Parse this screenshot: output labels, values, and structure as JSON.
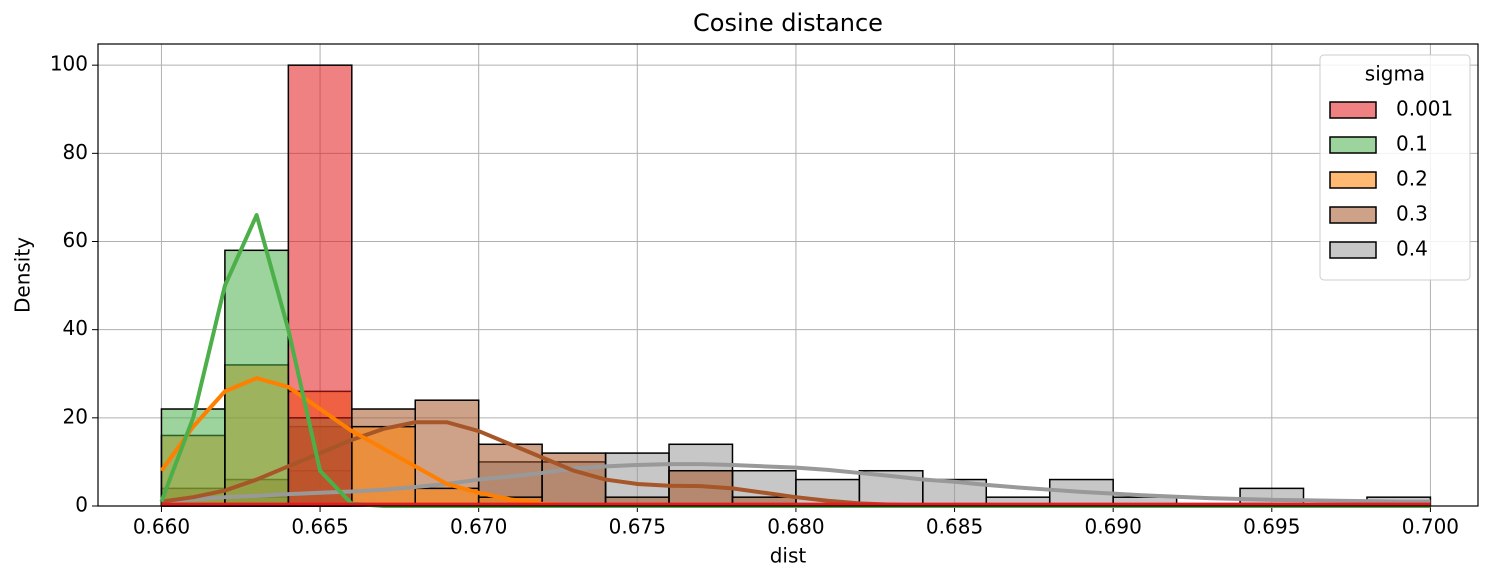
{
  "chart_data": {
    "type": "histogram",
    "title": "Cosine distance",
    "x_label": "dist",
    "y_label": "Density",
    "legend_title": "sigma",
    "legend_position": "upper right",
    "grid": true,
    "xlim": [
      0.658,
      0.7015
    ],
    "ylim": [
      0,
      104.8
    ],
    "xticks": [
      {
        "value": 0.66,
        "label": "0.660"
      },
      0.665,
      {
        "value": 0.67,
        "label": "0.670"
      },
      0.675,
      {
        "value": 0.68,
        "label": "0.680"
      },
      0.685,
      {
        "value": 0.69,
        "label": "0.690"
      },
      0.695,
      {
        "value": 0.7,
        "label": "0.700"
      }
    ],
    "yticks": [
      0,
      20,
      40,
      60,
      80,
      100
    ],
    "bins": [
      0.66,
      0.662,
      0.664,
      0.666,
      0.668,
      0.67,
      0.672,
      0.674,
      0.676,
      0.678,
      0.68,
      0.682,
      0.684,
      0.686,
      0.688,
      0.69,
      0.692,
      0.694,
      0.696,
      0.698,
      0.7
    ],
    "kde_x": [
      0.66,
      0.661,
      0.662,
      0.663,
      0.664,
      0.665,
      0.666,
      0.667,
      0.668,
      0.669,
      0.67,
      0.671,
      0.672,
      0.673,
      0.674,
      0.675,
      0.676,
      0.677,
      0.678,
      0.679,
      0.68,
      0.681,
      0.682,
      0.683,
      0.684,
      0.685,
      0.686,
      0.687,
      0.688,
      0.689,
      0.69,
      0.691,
      0.692,
      0.693,
      0.694,
      0.695,
      0.696,
      0.697,
      0.698,
      0.699,
      0.7
    ],
    "series": [
      {
        "name": "0.001",
        "color": "#e41a1c",
        "values": [
          0,
          0,
          100,
          0,
          0,
          0,
          0,
          0,
          0,
          0,
          0,
          0,
          0,
          0,
          0,
          0,
          0,
          0,
          0,
          0
        ],
        "kde": [
          0.3,
          0.3,
          0.3,
          0.3,
          0.3,
          0.3,
          0.3,
          0.3,
          0.3,
          0.3,
          0.3,
          0.3,
          0.3,
          0.3,
          0.3,
          0.3,
          0.3,
          0.3,
          0.3,
          0.3,
          0.3,
          0.3,
          0.3,
          0.3,
          0.3,
          0.3,
          0.3,
          0.3,
          0.3,
          0.3,
          0.3,
          0.3,
          0.3,
          0.3,
          0.3,
          0.3,
          0.3,
          0.3,
          0.3,
          0.3,
          0.3
        ]
      },
      {
        "name": "0.1",
        "color": "#4daf4a",
        "values": [
          22,
          58,
          20,
          0,
          0,
          0,
          0,
          0,
          0,
          0,
          0,
          0,
          0,
          0,
          0,
          0,
          0,
          0,
          0,
          0
        ],
        "kde": [
          1,
          20,
          50,
          66,
          40,
          8,
          0.5,
          0,
          0,
          0,
          0,
          0,
          0,
          0,
          0,
          0,
          0,
          0,
          0,
          0,
          0,
          0,
          0,
          0,
          0,
          0,
          0,
          0,
          0,
          0,
          0,
          0,
          0,
          0,
          0,
          0,
          0,
          0,
          0,
          0,
          0
        ]
      },
      {
        "name": "0.2",
        "color": "#ff7f00",
        "values": [
          16,
          32,
          26,
          18,
          4,
          2,
          0,
          0,
          0,
          0,
          0,
          0,
          0,
          0,
          0,
          0,
          0,
          0,
          0,
          0
        ],
        "kde": [
          8,
          18,
          26,
          29,
          27,
          22,
          17,
          13,
          9,
          5,
          3,
          1.5,
          0.5,
          0.2,
          0,
          0,
          0,
          0,
          0,
          0,
          0,
          0,
          0,
          0,
          0,
          0,
          0,
          0,
          0,
          0,
          0,
          0,
          0,
          0,
          0,
          0,
          0,
          0,
          0,
          0,
          0
        ]
      },
      {
        "name": "0.3",
        "color": "#a65628",
        "values": [
          4,
          6,
          18,
          22,
          24,
          14,
          12,
          2,
          8,
          2,
          0,
          0,
          0,
          0,
          0,
          0,
          0,
          0,
          0,
          0
        ],
        "kde": [
          1,
          2,
          3.5,
          6,
          9,
          12,
          15,
          17.5,
          19,
          19,
          17,
          14,
          11,
          8,
          6,
          5,
          4.6,
          4.5,
          4,
          3,
          2,
          1.2,
          0.6,
          0.3,
          0.1,
          0,
          0,
          0,
          0,
          0,
          0,
          0,
          0,
          0,
          0,
          0,
          0,
          0,
          0,
          0,
          0
        ]
      },
      {
        "name": "0.4",
        "color": "#999999",
        "values": [
          0,
          2,
          8,
          0,
          0,
          10,
          10,
          12,
          14,
          8,
          6,
          8,
          6,
          2,
          6,
          2,
          0,
          4,
          0,
          2
        ],
        "kde": [
          1,
          1.5,
          2,
          2.3,
          2.7,
          3,
          3.3,
          3.7,
          4.3,
          5,
          6,
          6.7,
          7.5,
          8.5,
          9,
          9.3,
          9.5,
          9.5,
          9.3,
          9,
          8.7,
          8.2,
          7.5,
          6.8,
          6,
          5.5,
          4.8,
          4.2,
          3.7,
          3.2,
          2.8,
          2.4,
          2.1,
          1.8,
          1.6,
          1.4,
          1.3,
          1.2,
          1.1,
          1.0,
          1.0
        ]
      }
    ]
  }
}
